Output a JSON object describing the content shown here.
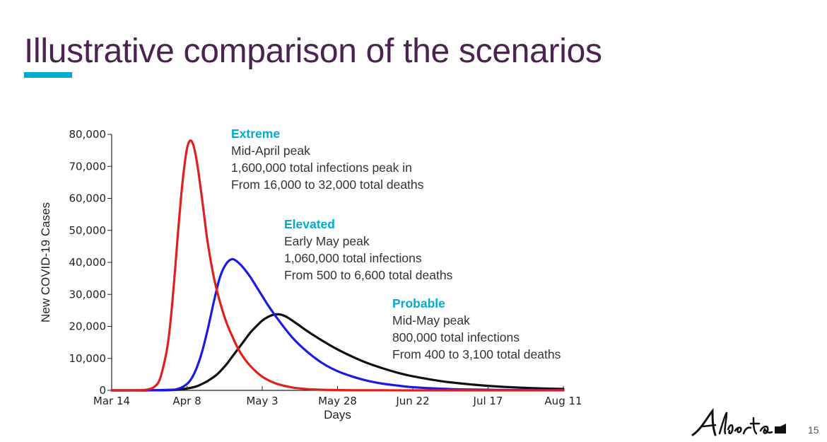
{
  "slide": {
    "title": "Illustrative comparison of the scenarios",
    "page_number": "15",
    "logo_text": "Alberta",
    "accent_color": "#00aad2",
    "title_color": "#4b2350"
  },
  "annotations": [
    {
      "heading": "Extreme",
      "lines": [
        "Mid-April peak",
        "1,600,000 total infections peak in",
        "From 16,000 to 32,000 total deaths"
      ]
    },
    {
      "heading": "Elevated",
      "lines": [
        "Early May peak",
        "1,060,000 total infections",
        "From 500 to 6,600 total deaths"
      ]
    },
    {
      "heading": "Probable",
      "lines": [
        "Mid-May peak",
        "800,000 total infections",
        "From 400 to 3,100 total deaths"
      ]
    }
  ],
  "chart_data": {
    "type": "line",
    "title": "",
    "xlabel": "Days",
    "ylabel": "New COVID-19 Cases",
    "x_tick_labels": [
      "Mar 14",
      "Apr 8",
      "May 3",
      "May 28",
      "Jun 22",
      "Jul 17",
      "Aug 11"
    ],
    "x_tick_days": [
      0,
      25,
      50,
      75,
      100,
      125,
      150
    ],
    "xlim": [
      0,
      150
    ],
    "y_tick_labels": [
      "0",
      "10,000",
      "20,000",
      "30,000",
      "40,000",
      "50,000",
      "60,000",
      "70,000",
      "80,000"
    ],
    "ylim": [
      0,
      80000
    ],
    "grid": false,
    "series": [
      {
        "name": "Extreme",
        "color": "#e02020",
        "x": [
          0,
          5,
          10,
          12,
          14,
          16,
          18,
          19,
          20,
          21,
          22,
          23,
          24,
          25,
          26,
          27,
          28,
          29,
          30,
          31,
          32,
          34,
          36,
          38,
          40,
          42,
          44,
          46,
          48,
          50,
          52,
          55,
          60,
          65,
          70,
          75,
          80,
          90,
          100,
          120,
          150
        ],
        "y": [
          0,
          0,
          100,
          300,
          1000,
          3500,
          11000,
          17000,
          26000,
          37000,
          49000,
          60000,
          69000,
          75500,
          78000,
          77000,
          73000,
          67000,
          60000,
          52500,
          45500,
          35000,
          27500,
          21500,
          17000,
          13000,
          10000,
          7700,
          5800,
          4300,
          3200,
          2000,
          900,
          400,
          200,
          100,
          40,
          20,
          0,
          0,
          0
        ]
      },
      {
        "name": "Elevated",
        "color": "#1a1ae0",
        "x": [
          0,
          10,
          20,
          22,
          24,
          26,
          28,
          30,
          32,
          34,
          36,
          38,
          40,
          42,
          44,
          46,
          48,
          50,
          52,
          55,
          60,
          65,
          70,
          75,
          80,
          85,
          90,
          95,
          100,
          110,
          120,
          135,
          150
        ],
        "y": [
          0,
          0,
          200,
          500,
          1300,
          3000,
          6500,
          12000,
          19500,
          28000,
          35500,
          39500,
          41000,
          40000,
          38000,
          35500,
          32500,
          29500,
          26500,
          22500,
          16500,
          12000,
          8500,
          6000,
          4300,
          3000,
          2100,
          1500,
          1000,
          500,
          250,
          80,
          30
        ]
      },
      {
        "name": "Probable",
        "color": "#111111",
        "x": [
          0,
          10,
          20,
          25,
          28,
          30,
          32,
          35,
          38,
          40,
          42,
          44,
          46,
          48,
          50,
          52,
          54,
          56,
          58,
          60,
          62,
          65,
          70,
          75,
          80,
          85,
          90,
          95,
          100,
          110,
          120,
          130,
          140,
          150
        ],
        "y": [
          0,
          0,
          100,
          600,
          1200,
          2000,
          3000,
          5000,
          8000,
          10500,
          13000,
          15500,
          18000,
          20000,
          21800,
          23000,
          23700,
          23700,
          23000,
          21800,
          20500,
          18500,
          15500,
          12800,
          10500,
          8500,
          6900,
          5500,
          4400,
          2800,
          1800,
          1100,
          700,
          450
        ]
      }
    ]
  }
}
